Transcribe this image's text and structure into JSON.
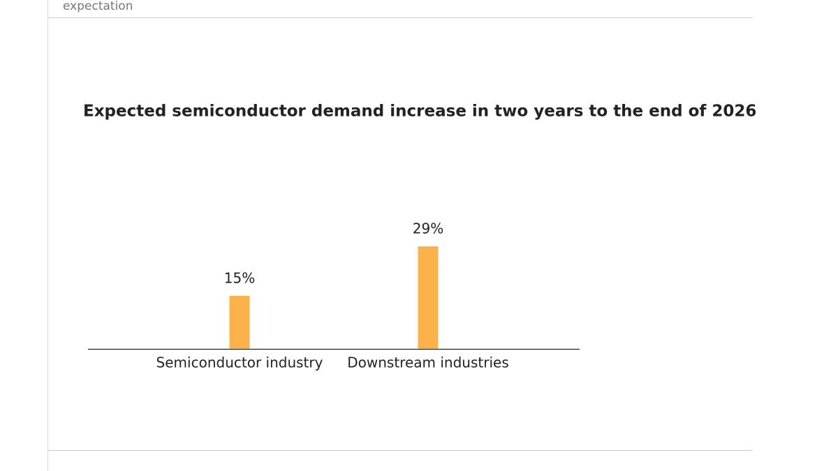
{
  "header": {
    "text": "expectation"
  },
  "chart_data": {
    "type": "bar",
    "title": "Expected semiconductor demand increase in two years to the end of 2026",
    "categories": [
      "Semiconductor industry",
      "Downstream industries"
    ],
    "values": [
      15,
      29
    ],
    "value_labels": [
      "15%",
      "29%"
    ],
    "color": "#fbb24b",
    "ylim": [
      0,
      30
    ]
  }
}
